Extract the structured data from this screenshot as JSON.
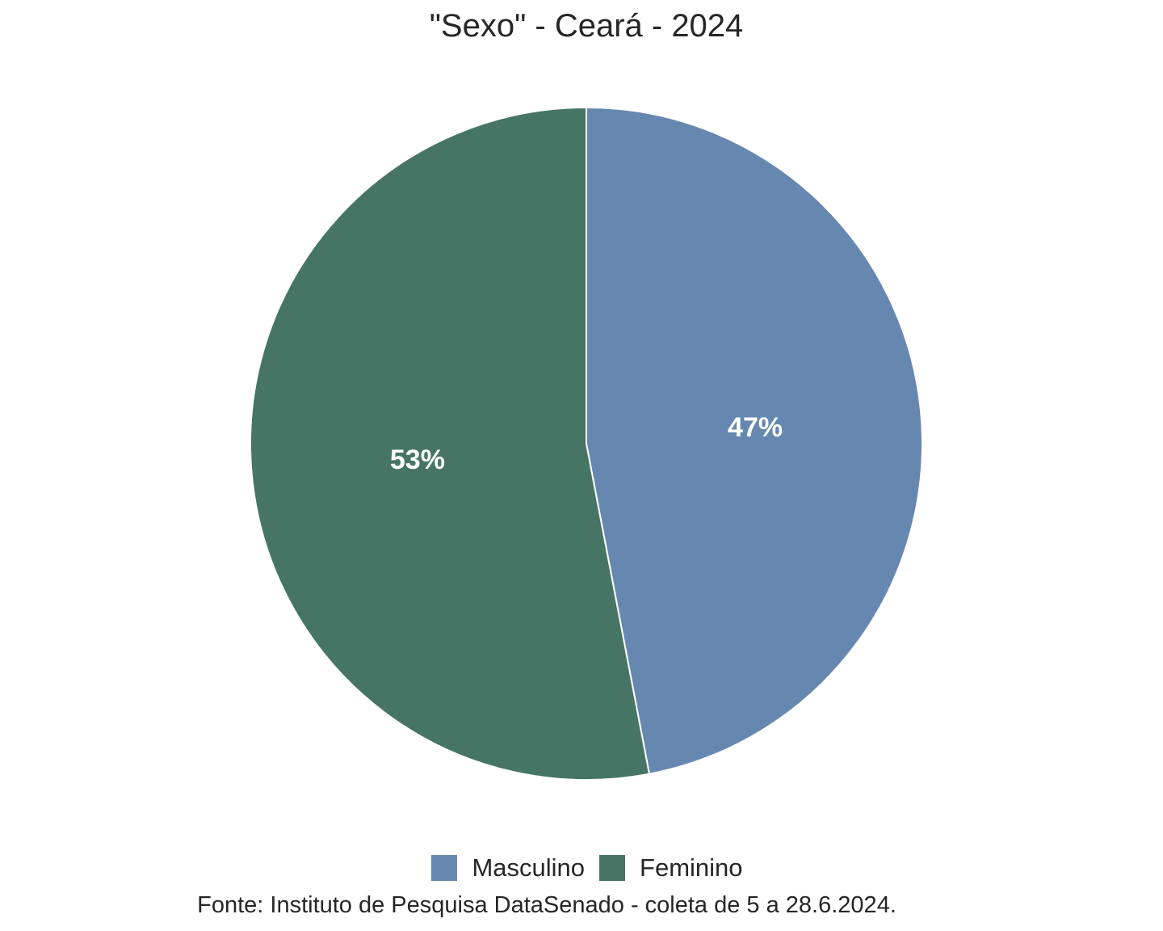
{
  "chart_data": {
    "type": "pie",
    "title": "\"Sexo\" - Ceará - 2024",
    "caption": "Fonte: Instituto de Pesquisa DataSenado - coleta de 5 a 28.6.2024.",
    "legend_position": "bottom",
    "slices": [
      {
        "name": "Masculino",
        "value": 47,
        "label": "47%",
        "color": "#6688b0"
      },
      {
        "name": "Feminino",
        "value": 53,
        "label": "53%",
        "color": "#467565"
      }
    ],
    "label_color": "#ffffff",
    "border_color": "#ffffff"
  }
}
